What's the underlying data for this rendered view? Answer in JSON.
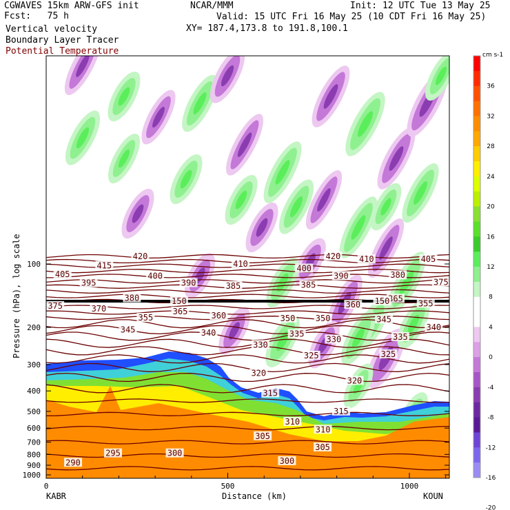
{
  "header": {
    "line1_left": "CGWAVES 15km ARW-GFS init",
    "line1_mid": "NCAR/MMM",
    "line1_right": "Init: 12 UTC Tue 13 May 25",
    "fcst": "Fcst:   75 h",
    "valid": "Valid: 15 UTC Fri 16 May 25 (10 CDT Fri 16 May 25)",
    "xy": "XY= 187.4,173.8 to 191.8,100.1",
    "fields": [
      "Vertical velocity",
      "Boundary Layer Tracer"
    ],
    "field_red": "Potential Temperature"
  },
  "colors": {
    "theta_contour": "#6b0000",
    "terrain_orange": "#ff8c00",
    "tracer_yellow": "#ffee00",
    "tracer_green": "#7fe033",
    "tracer_blue": "#1f4fff",
    "up_green": "#55e03c",
    "down_purple": "#9a3cc2"
  },
  "chart_data": {
    "type": "heatmap",
    "title": "",
    "xlabel": "Distance (km)",
    "ylabel": "Pressure (hPa), log scale",
    "x_ticks": [
      0,
      500,
      1000
    ],
    "xlim": [
      0,
      1110
    ],
    "y_ticks": [
      100,
      200,
      300,
      400,
      500,
      600,
      700,
      800,
      900,
      1000
    ],
    "y_scale": "log",
    "endpoints": {
      "left": "KABR",
      "right": "KOUN"
    },
    "colorbar": {
      "units": "cm s-1",
      "labels": [
        36,
        32,
        28,
        24,
        20,
        16,
        12,
        8,
        4,
        0,
        -4,
        -8,
        -12,
        -16,
        -20
      ],
      "colors": [
        "#ff0000",
        "#ff2a00",
        "#ff5000",
        "#ff7000",
        "#ff8c00",
        "#ffa800",
        "#ffcc00",
        "#ffee00",
        "#ddff00",
        "#bbf000",
        "#88e033",
        "#5adf2a",
        "#39cc2a",
        "#5bee5b",
        "#8ff08f",
        "#c4f5c4",
        "#ffffff",
        "#ffffff",
        "#edc8f0",
        "#dca0e6",
        "#c478d8",
        "#a855c8",
        "#8a3cb0",
        "#6c28a0",
        "#5a1a96",
        "#6e44d8",
        "#7d66ee",
        "#9a8cf4"
      ]
    },
    "theta_labels": [
      {
        "v": 420,
        "x": 259,
        "p": 92
      },
      {
        "v": 420,
        "x": 790,
        "p": 92
      },
      {
        "v": 415,
        "x": 160,
        "p": 102
      },
      {
        "v": 410,
        "x": 535,
        "p": 100
      },
      {
        "v": 410,
        "x": 882,
        "p": 95
      },
      {
        "v": 405,
        "x": 45,
        "p": 112
      },
      {
        "v": 405,
        "x": 1052,
        "p": 95
      },
      {
        "v": 400,
        "x": 300,
        "p": 114
      },
      {
        "v": 400,
        "x": 710,
        "p": 105
      },
      {
        "v": 395,
        "x": 117,
        "p": 123
      },
      {
        "v": 390,
        "x": 392,
        "p": 123
      },
      {
        "v": 390,
        "x": 812,
        "p": 114
      },
      {
        "v": 385,
        "x": 515,
        "p": 127
      },
      {
        "v": 385,
        "x": 722,
        "p": 126
      },
      {
        "v": 380,
        "x": 236,
        "p": 145
      },
      {
        "v": 380,
        "x": 968,
        "p": 113
      },
      {
        "v": 375,
        "x": 25,
        "p": 158
      },
      {
        "v": 375,
        "x": 1087,
        "p": 122
      },
      {
        "v": 370,
        "x": 145,
        "p": 163
      },
      {
        "v": 365,
        "x": 369,
        "p": 168
      },
      {
        "v": 365,
        "x": 962,
        "p": 146
      },
      {
        "v": 360,
        "x": 475,
        "p": 176
      },
      {
        "v": 360,
        "x": 845,
        "p": 156
      },
      {
        "v": 355,
        "x": 274,
        "p": 180
      },
      {
        "v": 355,
        "x": 1045,
        "p": 154
      },
      {
        "v": 350,
        "x": 665,
        "p": 181
      },
      {
        "v": 350,
        "x": 762,
        "p": 181
      },
      {
        "v": 345,
        "x": 225,
        "p": 205
      },
      {
        "v": 345,
        "x": 930,
        "p": 183
      },
      {
        "v": 340,
        "x": 447,
        "p": 212
      },
      {
        "v": 340,
        "x": 1067,
        "p": 200
      },
      {
        "v": 335,
        "x": 690,
        "p": 215
      },
      {
        "v": 335,
        "x": 975,
        "p": 222
      },
      {
        "v": 330,
        "x": 590,
        "p": 242
      },
      {
        "v": 330,
        "x": 792,
        "p": 228
      },
      {
        "v": 325,
        "x": 730,
        "p": 272
      },
      {
        "v": 325,
        "x": 942,
        "p": 268
      },
      {
        "v": 320,
        "x": 585,
        "p": 330
      },
      {
        "v": 320,
        "x": 849,
        "p": 358
      },
      {
        "v": 315,
        "x": 617,
        "p": 410
      },
      {
        "v": 315,
        "x": 812,
        "p": 500
      },
      {
        "v": 310,
        "x": 678,
        "p": 560
      },
      {
        "v": 310,
        "x": 762,
        "p": 610
      },
      {
        "v": 305,
        "x": 596,
        "p": 655
      },
      {
        "v": 305,
        "x": 761,
        "p": 740
      },
      {
        "v": 300,
        "x": 354,
        "p": 790
      },
      {
        "v": 300,
        "x": 663,
        "p": 860
      },
      {
        "v": 295,
        "x": 184,
        "p": 790
      },
      {
        "v": 290,
        "x": 74,
        "p": 875
      }
    ],
    "special_labels": [
      {
        "v": 150,
        "x": 366,
        "p": 150
      },
      {
        "v": 150,
        "x": 925,
        "p": 150
      }
    ],
    "grid": false,
    "legend": "colorbar right"
  }
}
